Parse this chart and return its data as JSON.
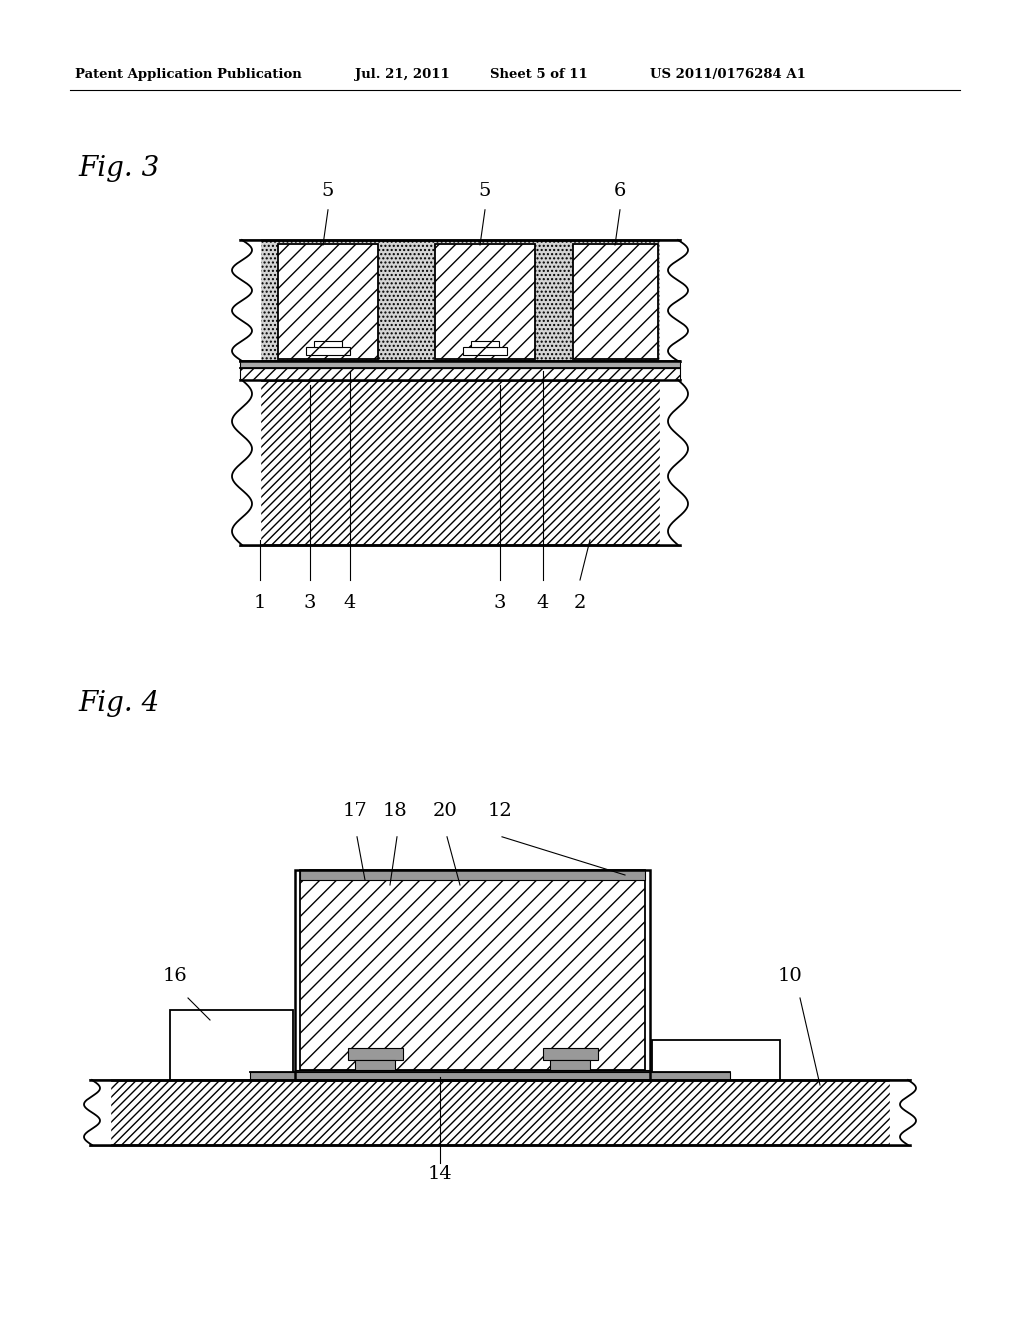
{
  "bg_color": "#ffffff",
  "black": "#000000",
  "header_text": "Patent Application Publication",
  "header_date": "Jul. 21, 2011",
  "header_sheet": "Sheet 5 of 11",
  "header_patent": "US 2011/0176284 A1",
  "fig3_label": "Fig. 3",
  "fig4_label": "Fig. 4",
  "gray_light": "#c8c8c8",
  "gray_dark": "#888888",
  "gray_dots": "#b0b0b0"
}
